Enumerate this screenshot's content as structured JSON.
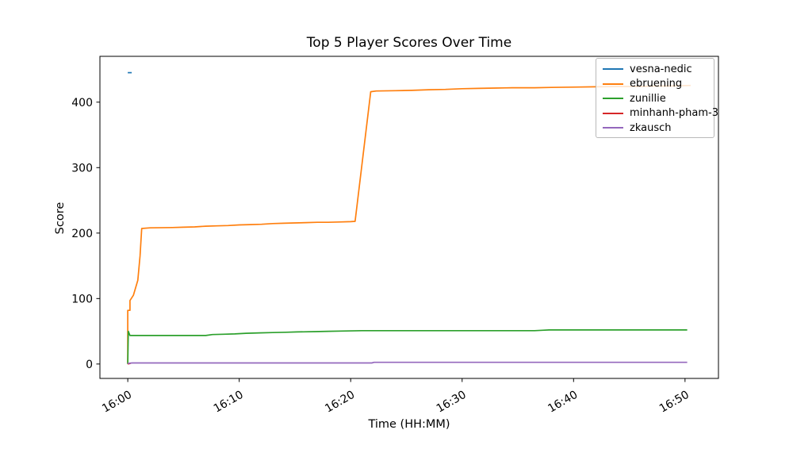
{
  "chart_data": {
    "type": "line",
    "title": "Top 5 Player Scores Over Time",
    "xlabel": "Time (HH:MM)",
    "ylabel": "Score",
    "x_unit": "minutes after 16:00",
    "xlim": [
      -2.5,
      53
    ],
    "ylim": [
      -22,
      470
    ],
    "grid": false,
    "legend_position": "upper right",
    "legend_border_color": "#b9b9b9",
    "x_ticks": [
      {
        "t": 0,
        "label": "16:00"
      },
      {
        "t": 10,
        "label": "16:10"
      },
      {
        "t": 20,
        "label": "16:20"
      },
      {
        "t": 30,
        "label": "16:30"
      },
      {
        "t": 40,
        "label": "16:40"
      },
      {
        "t": 50,
        "label": "16:50"
      }
    ],
    "y_ticks": [
      {
        "v": 0,
        "label": "0"
      },
      {
        "v": 100,
        "label": "100"
      },
      {
        "v": 200,
        "label": "200"
      },
      {
        "v": 300,
        "label": "300"
      },
      {
        "v": 400,
        "label": "400"
      }
    ],
    "series": [
      {
        "name": "vesna-nedic",
        "color": "#1f77b4",
        "points": [
          [
            0,
            445
          ],
          [
            0.35,
            445
          ]
        ]
      },
      {
        "name": "ebruening",
        "color": "#ff7f0e",
        "points": [
          [
            0,
            0
          ],
          [
            0,
            82
          ],
          [
            0.2,
            82
          ],
          [
            0.2,
            97
          ],
          [
            0.5,
            105
          ],
          [
            0.9,
            128
          ],
          [
            1.1,
            165
          ],
          [
            1.25,
            207
          ],
          [
            2,
            208
          ],
          [
            4,
            208.5
          ],
          [
            5,
            209
          ],
          [
            6,
            209.5
          ],
          [
            7,
            210.5
          ],
          [
            8,
            211
          ],
          [
            9,
            211.5
          ],
          [
            10,
            212.5
          ],
          [
            11,
            213
          ],
          [
            12,
            213.5
          ],
          [
            13,
            214.5
          ],
          [
            14,
            215
          ],
          [
            15,
            215.5
          ],
          [
            16,
            216
          ],
          [
            17,
            216.5
          ],
          [
            18,
            216.5
          ],
          [
            19,
            217
          ],
          [
            20,
            217.5
          ],
          [
            20.4,
            218
          ],
          [
            21.8,
            416
          ],
          [
            22.3,
            417
          ],
          [
            24,
            417.5
          ],
          [
            25.5,
            418
          ],
          [
            27,
            419
          ],
          [
            28.5,
            419.5
          ],
          [
            30,
            420.5
          ],
          [
            31.5,
            421
          ],
          [
            33,
            421.5
          ],
          [
            34.5,
            422
          ],
          [
            36.5,
            422
          ],
          [
            38,
            422.5
          ],
          [
            40,
            423
          ],
          [
            42,
            423.5
          ],
          [
            44,
            424
          ],
          [
            46,
            424
          ],
          [
            47,
            424.5
          ],
          [
            48.5,
            424.5
          ],
          [
            50.5,
            425.5
          ]
        ]
      },
      {
        "name": "zunillie",
        "color": "#2ca02c",
        "points": [
          [
            0,
            0
          ],
          [
            0.05,
            50
          ],
          [
            0.2,
            43.5
          ],
          [
            7,
            43.5
          ],
          [
            7.6,
            45
          ],
          [
            8.6,
            45.5
          ],
          [
            9.6,
            46
          ],
          [
            10.6,
            47
          ],
          [
            11.8,
            47.5
          ],
          [
            13,
            48
          ],
          [
            14.2,
            48.5
          ],
          [
            15.2,
            49
          ],
          [
            16.8,
            49.5
          ],
          [
            18,
            50
          ],
          [
            19.6,
            50.5
          ],
          [
            21,
            51
          ],
          [
            26,
            51
          ],
          [
            32,
            51
          ],
          [
            36.5,
            51
          ],
          [
            37.2,
            51.5
          ],
          [
            37.8,
            52
          ],
          [
            44,
            52
          ],
          [
            50.2,
            52
          ]
        ]
      },
      {
        "name": "minhanh-pham-3",
        "color": "#d62728",
        "points": [
          [
            0,
            0
          ],
          [
            0.25,
            1
          ]
        ]
      },
      {
        "name": "zkausch",
        "color": "#9467bd",
        "points": [
          [
            0,
            1
          ],
          [
            0.4,
            1.6
          ],
          [
            21.9,
            1.6
          ],
          [
            22.1,
            2.6
          ],
          [
            50.2,
            2.6
          ]
        ]
      }
    ]
  }
}
